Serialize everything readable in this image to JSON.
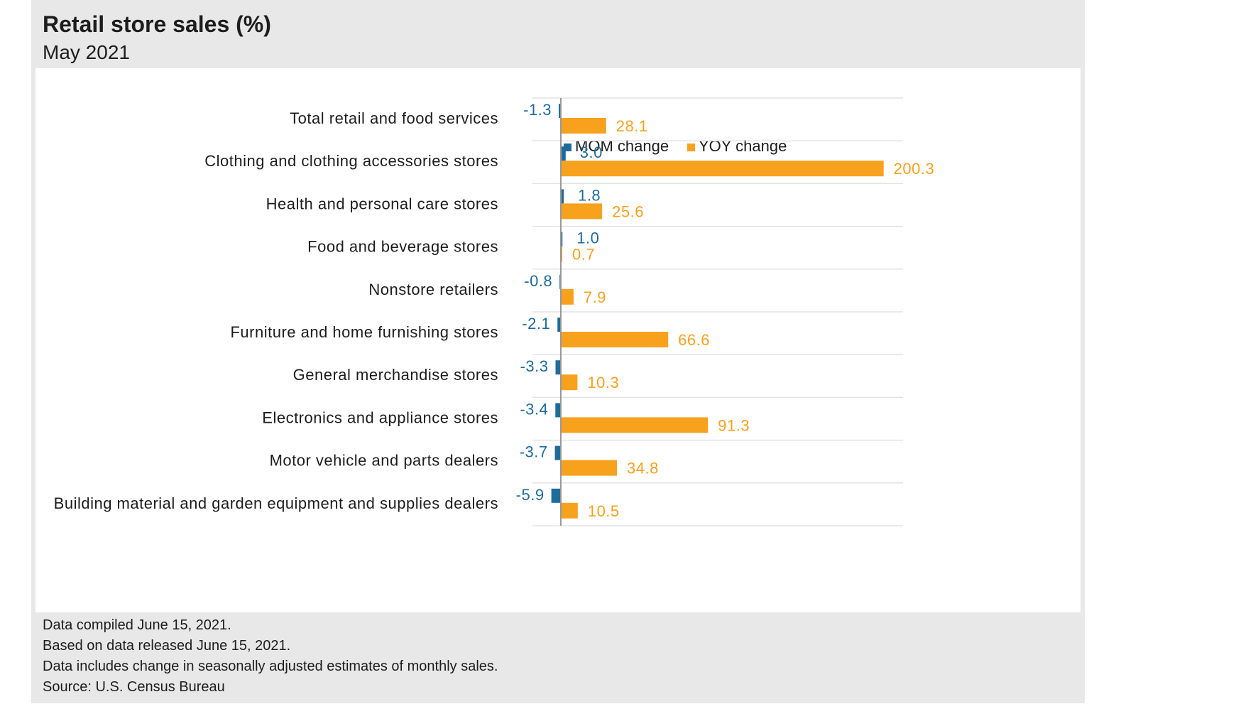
{
  "title": "Retail store sales (%)",
  "subtitle": "May 2021",
  "notes": [
    "Data compiled June 15, 2021.",
    "Based on data released June 15, 2021.",
    "Data includes change in seasonally adjusted estimates of monthly sales.",
    "Source: U.S. Census Bureau"
  ],
  "colors": {
    "mom": "#1f6b9a",
    "yoy": "#f7a11d",
    "grid": "#e3e3e3",
    "axis": "#999999",
    "text": "#1d1d1d"
  },
  "chart_data": {
    "type": "bar",
    "orientation": "horizontal",
    "categories": [
      "Total retail and food services",
      "Clothing and clothing accessories stores",
      "Health and personal care stores",
      "Food and beverage stores",
      "Nonstore retailers",
      "Furniture and home furnishing stores",
      "General merchandise stores",
      "Electronics and appliance stores",
      "Motor vehicle and parts dealers",
      "Building material and garden equipment and supplies dealers"
    ],
    "series": [
      {
        "name": "MOM change",
        "values": [
          -1.3,
          3.0,
          1.8,
          1.0,
          -0.8,
          -2.1,
          -3.3,
          -3.4,
          -3.7,
          -5.9
        ],
        "labels": [
          "-1.3",
          "3.0",
          "1.8",
          "1.0",
          "-0.8",
          "-2.1",
          "-3.3",
          "-3.4",
          "-3.7",
          "-5.9"
        ]
      },
      {
        "name": "YOY change",
        "values": [
          28.1,
          200.3,
          25.6,
          0.7,
          7.9,
          66.6,
          10.3,
          91.3,
          34.8,
          10.5
        ],
        "labels": [
          "28.1",
          "200.3",
          "25.6",
          "0.7",
          "7.9",
          "66.6",
          "10.3",
          "91.3",
          "34.8",
          "10.5"
        ]
      }
    ],
    "legend_position": "top",
    "grid": true,
    "xlim": [
      -6,
      212
    ]
  }
}
